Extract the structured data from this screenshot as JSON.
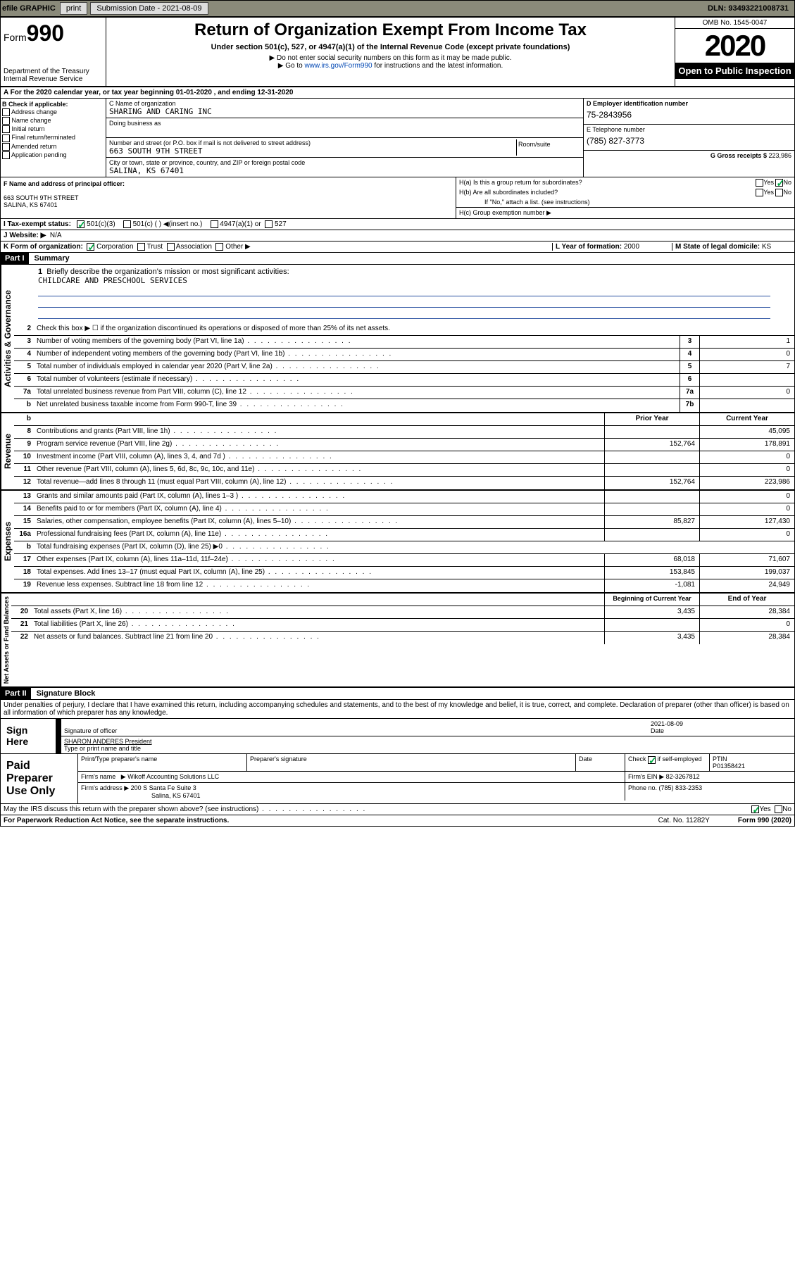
{
  "topbar": {
    "efile": "efile GRAPHIC",
    "print": "print",
    "subdate_lbl": "Submission Date - ",
    "subdate": "2021-08-09",
    "dln_lbl": "DLN: ",
    "dln": "93493221008731"
  },
  "hdr": {
    "form": "Form",
    "n990": "990",
    "title": "Return of Organization Exempt From Income Tax",
    "sub": "Under section 501(c), 527, or 4947(a)(1) of the Internal Revenue Code (except private foundations)",
    "nossn": "▶ Do not enter social security numbers on this form as it may be made public.",
    "goto1": "▶ Go to ",
    "gotolink": "www.irs.gov/Form990",
    "goto2": " for instructions and the latest information.",
    "dept": "Department of the Treasury",
    "irs": "Internal Revenue Service",
    "omb": "OMB No. 1545-0047",
    "year": "2020",
    "open": "Open to Public Inspection"
  },
  "a": {
    "text": "A For the 2020 calendar year, or tax year beginning ",
    "beg": "01-01-2020",
    "mid": " , and ending ",
    "end": "12-31-2020"
  },
  "b": {
    "hdr": "B Check if applicable:",
    "addr": "Address change",
    "name": "Name change",
    "init": "Initial return",
    "final": "Final return/terminated",
    "amend": "Amended return",
    "app": "Application pending"
  },
  "c": {
    "name_lbl": "C Name of organization",
    "name": "SHARING AND CARING INC",
    "dba_lbl": "Doing business as",
    "addr_lbl": "Number and street (or P.O. box if mail is not delivered to street address)",
    "room_lbl": "Room/suite",
    "addr": "663 SOUTH 9TH STREET",
    "city_lbl": "City or town, state or province, country, and ZIP or foreign postal code",
    "city": "SALINA, KS  67401"
  },
  "d": {
    "lbl": "D Employer identification number",
    "val": "75-2843956"
  },
  "e": {
    "lbl": "E Telephone number",
    "val": "(785) 827-3773"
  },
  "g": {
    "lbl": "G Gross receipts $ ",
    "val": "223,986"
  },
  "f": {
    "lbl": "F  Name and address of principal officer:",
    "addr1": "663 SOUTH 9TH STREET",
    "addr2": "SALINA, KS  67401"
  },
  "h": {
    "a": "H(a)  Is this a group return for subordinates?",
    "b": "H(b)  Are all subordinates included?",
    "note": "If \"No,\" attach a list. (see instructions)",
    "c": "H(c)  Group exemption number ▶",
    "yes": "Yes",
    "no": "No"
  },
  "i": {
    "lbl": "I     Tax-exempt status:",
    "c501c3": "501(c)(3)",
    "c501c": "501(c) (  ) ◀(insert no.)",
    "c4947": "4947(a)(1) or",
    "c527": "527"
  },
  "j": {
    "lbl": "J    Website: ▶",
    "val": "N/A"
  },
  "k": {
    "lbl": "K Form of organization:",
    "corp": "Corporation",
    "trust": "Trust",
    "assoc": "Association",
    "other": "Other ▶"
  },
  "l": {
    "lbl": "L Year of formation: ",
    "val": "2000"
  },
  "m": {
    "lbl": "M State of legal domicile: ",
    "val": "KS"
  },
  "p1": {
    "part": "Part I",
    "title": "Summary"
  },
  "sum": {
    "q1": "Briefly describe the organization's mission or most significant activities:",
    "mission": "CHILDCARE AND PRESCHOOL SERVICES",
    "q2": "Check this box ▶ ☐ if the organization discontinued its operations or disposed of more than 25% of its net assets.",
    "rows": [
      {
        "n": "3",
        "t": "Number of voting members of the governing body (Part VI, line 1a)",
        "box": "3",
        "v2": "1"
      },
      {
        "n": "4",
        "t": "Number of independent voting members of the governing body (Part VI, line 1b)",
        "box": "4",
        "v2": "0"
      },
      {
        "n": "5",
        "t": "Total number of individuals employed in calendar year 2020 (Part V, line 2a)",
        "box": "5",
        "v2": "7"
      },
      {
        "n": "6",
        "t": "Total number of volunteers (estimate if necessary)",
        "box": "6",
        "v2": ""
      },
      {
        "n": "7a",
        "t": "Total unrelated business revenue from Part VIII, column (C), line 12",
        "box": "7a",
        "v2": "0"
      },
      {
        "n": "b",
        "t": "Net unrelated business taxable income from Form 990-T, line 39",
        "box": "7b",
        "v2": ""
      }
    ],
    "colhdr1": "Prior Year",
    "colhdr2": "Current Year",
    "rev": [
      {
        "n": "8",
        "t": "Contributions and grants (Part VIII, line 1h)",
        "v1": "",
        "v2": "45,095"
      },
      {
        "n": "9",
        "t": "Program service revenue (Part VIII, line 2g)",
        "v1": "152,764",
        "v2": "178,891"
      },
      {
        "n": "10",
        "t": "Investment income (Part VIII, column (A), lines 3, 4, and 7d )",
        "v1": "",
        "v2": "0"
      },
      {
        "n": "11",
        "t": "Other revenue (Part VIII, column (A), lines 5, 6d, 8c, 9c, 10c, and 11e)",
        "v1": "",
        "v2": "0"
      },
      {
        "n": "12",
        "t": "Total revenue—add lines 8 through 11 (must equal Part VIII, column (A), line 12)",
        "v1": "152,764",
        "v2": "223,986"
      }
    ],
    "exp": [
      {
        "n": "13",
        "t": "Grants and similar amounts paid (Part IX, column (A), lines 1–3 )",
        "v1": "",
        "v2": "0"
      },
      {
        "n": "14",
        "t": "Benefits paid to or for members (Part IX, column (A), line 4)",
        "v1": "",
        "v2": "0"
      },
      {
        "n": "15",
        "t": "Salaries, other compensation, employee benefits (Part IX, column (A), lines 5–10)",
        "v1": "85,827",
        "v2": "127,430"
      },
      {
        "n": "16a",
        "t": "Professional fundraising fees (Part IX, column (A), line 11e)",
        "v1": "",
        "v2": "0"
      },
      {
        "n": "b",
        "t": "Total fundraising expenses (Part IX, column (D), line 25) ▶0",
        "v1": null,
        "v2": null
      },
      {
        "n": "17",
        "t": "Other expenses (Part IX, column (A), lines 11a–11d, 11f–24e)",
        "v1": "68,018",
        "v2": "71,607"
      },
      {
        "n": "18",
        "t": "Total expenses. Add lines 13–17 (must equal Part IX, column (A), line 25)",
        "v1": "153,845",
        "v2": "199,037"
      },
      {
        "n": "19",
        "t": "Revenue less expenses. Subtract line 18 from line 12",
        "v1": "-1,081",
        "v2": "24,949"
      }
    ],
    "colhdr3": "Beginning of Current Year",
    "colhdr4": "End of Year",
    "net": [
      {
        "n": "20",
        "t": "Total assets (Part X, line 16)",
        "v1": "3,435",
        "v2": "28,384"
      },
      {
        "n": "21",
        "t": "Total liabilities (Part X, line 26)",
        "v1": "",
        "v2": "0"
      },
      {
        "n": "22",
        "t": "Net assets or fund balances. Subtract line 21 from line 20",
        "v1": "3,435",
        "v2": "28,384"
      }
    ]
  },
  "sidelabels": {
    "gov": "Activities & Governance",
    "rev": "Revenue",
    "exp": "Expenses",
    "net": "Net Assets or Fund Balances"
  },
  "p2": {
    "part": "Part II",
    "title": "Signature Block"
  },
  "decl": "Under penalties of perjury, I declare that I have examined this return, including accompanying schedules and statements, and to the best of my knowledge and belief, it is true, correct, and complete. Declaration of preparer (other than officer) is based on all information of which preparer has any knowledge.",
  "sign": {
    "here": "Sign Here",
    "sigoff": "Signature of officer",
    "date_lbl": "Date",
    "date": "2021-08-09",
    "name": "SHARON ANDERES President",
    "name_lbl": "Type or print name and title"
  },
  "paid": {
    "lbl": "Paid Preparer Use Only",
    "h1": "Print/Type preparer's name",
    "h2": "Preparer's signature",
    "h3": "Date",
    "h4": "Check",
    "h4b": "if self-employed",
    "h5": "PTIN",
    "ptin": "P01358421",
    "firm_lbl": "Firm's name",
    "firm": "▶ Wikoff Accounting Solutions LLC",
    "ein_lbl": "Firm's EIN ▶ ",
    "ein": "82-3267812",
    "addr_lbl": "Firm's address ▶ ",
    "addr1": "200 S Santa Fe Suite 3",
    "addr2": "Salina, KS  67401",
    "ph_lbl": "Phone no. ",
    "ph": "(785) 833-2353"
  },
  "discuss": "May the IRS discuss this return with the preparer shown above? (see instructions)",
  "foot": {
    "pra": "For Paperwork Reduction Act Notice, see the separate instructions.",
    "cat": "Cat. No. 11282Y",
    "form": "Form 990 (2020)"
  }
}
